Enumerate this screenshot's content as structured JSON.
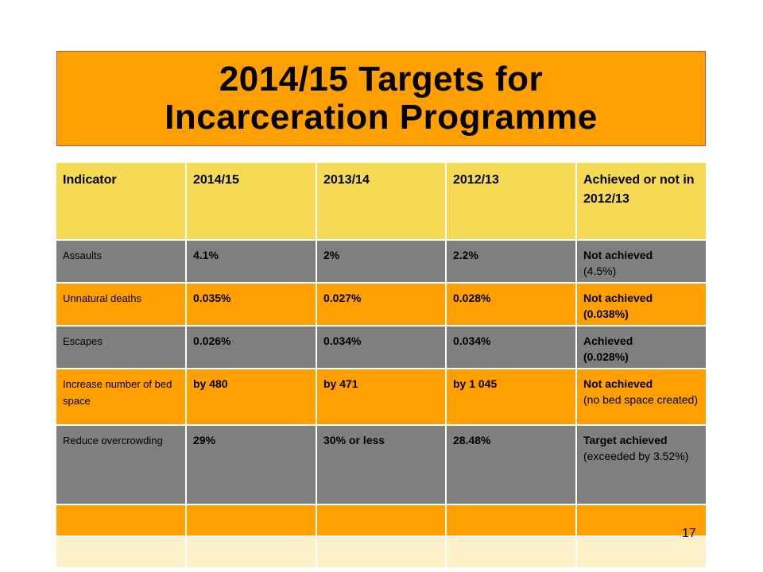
{
  "title": {
    "line1": "2014/15 Targets for",
    "line2": "Incarceration Programme"
  },
  "table": {
    "headers": [
      "Indicator",
      "2014/15",
      "2013/14",
      "2012/13",
      "Achieved or not in 2012/13"
    ],
    "rows": [
      {
        "indicator": "Assaults",
        "y2014": "4.1%",
        "y2013": "2%",
        "y2012": "2.2%",
        "achieved_main": "Not achieved",
        "achieved_sub": "(4.5%)"
      },
      {
        "indicator": "Unnatural deaths",
        "y2014": "0.035%",
        "y2013": "0.027%",
        "y2012": "0.028%",
        "achieved_main": "Not achieved",
        "achieved_sub": "(0.038%)"
      },
      {
        "indicator": "Escapes",
        "y2014": "0.026%",
        "y2013": "0.034%",
        "y2012": "0.034%",
        "achieved_main": "Achieved",
        "achieved_sub": "(0.028%)"
      },
      {
        "indicator": "Increase number of bed space",
        "y2014": "by 480",
        "y2013": "by 471",
        "y2012": "by 1 045",
        "achieved_main": "Not achieved",
        "achieved_sub": "(no bed space created)"
      },
      {
        "indicator": "Reduce overcrowding",
        "y2014": "29%",
        "y2013": "30% or less",
        "y2012": "28.48%",
        "achieved_main": "Target achieved",
        "achieved_sub": "(exceeded by 3.52%)"
      }
    ]
  },
  "page_number": "17",
  "colors": {
    "orange": "#ff9f00",
    "yellow_header": "#f6da54",
    "grey": "#7f7f7f",
    "pale": "#fcf1c9",
    "title_border": "#c0504d"
  }
}
